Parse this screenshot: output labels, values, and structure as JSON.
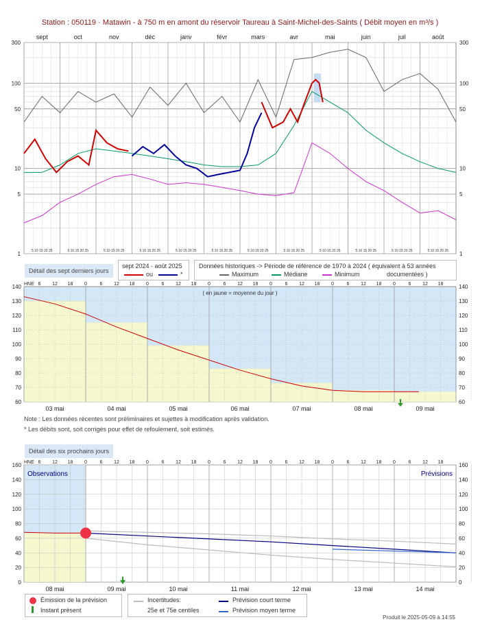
{
  "title": "Station : 050119     ·   Matawin - à 750 m en amont du réservoir Taureau à Saint-Michel-des-Saints   ( Débit moyen en m³/s )",
  "footer": "Produit le 2025-05-09 à 14:55",
  "colors": {
    "recent": "#cc0000",
    "recent_corrected": "#000099",
    "maximum": "#666666",
    "median": "#009966",
    "minimum": "#cc33cc",
    "panel_bg": "#dbe9f6",
    "daily_avg": "#f5f8cf",
    "forecast_short": "#000080",
    "forecast_medium": "#3366cc",
    "uncertainty": "#bbbbbb"
  },
  "annual": {
    "months": [
      "sept",
      "oct",
      "nov",
      "déc",
      "janv",
      "févr",
      "mars",
      "avr",
      "mai",
      "juin",
      "juil",
      "août"
    ],
    "day_ticks_label": "5  10 15 20 25",
    "yticks": [
      "1",
      "5",
      "10",
      "50",
      "100",
      "300"
    ],
    "yticks_right": [
      "1",
      "5",
      "10",
      "50",
      "100",
      "300"
    ],
    "tab_label": "Détail des sept derniers jours",
    "legend_recent_title": "sept 2024 - août 2025",
    "legend_recent_or": "ou",
    "legend_recent_star": "*",
    "legend_hist_title": "Données historiques -> Période de référence  de 1970 à 2024   ( équivalent à 53 années",
    "legend_max": "Maximum",
    "legend_median": "Médiane",
    "legend_min": "Minimum",
    "legend_documented": "documentées )"
  },
  "week": {
    "hne": "HNE",
    "hours": [
      "6",
      "12",
      "18",
      "0",
      "6",
      "12",
      "18",
      "0",
      "6",
      "12",
      "18",
      "0",
      "6",
      "12",
      "18",
      "0",
      "6",
      "12",
      "18",
      "0",
      "6",
      "12",
      "18",
      "0",
      "6",
      "12",
      "18"
    ],
    "yticks": [
      "60",
      "70",
      "80",
      "90",
      "100",
      "110",
      "120",
      "130",
      "140"
    ],
    "days": [
      "03 mai",
      "04 mai",
      "05 mai",
      "06 mai",
      "07 mai",
      "08 mai",
      "09 mai"
    ],
    "caption": "( en jaune = moyenne du jour )",
    "note1": "Note : Les données récentes sont préliminaires et sujettes à modification après validation.",
    "note2": "* Les débits sont, soit corrigés pour effet de refoulement, soit estimés."
  },
  "forecast": {
    "tab_label": "Détail des six prochains jours",
    "hne": "HNE",
    "hours": [
      "6",
      "12",
      "18",
      "0",
      "6",
      "12",
      "18",
      "0",
      "6",
      "12",
      "18",
      "0",
      "6",
      "12",
      "18",
      "0",
      "6",
      "12",
      "18",
      "0",
      "6",
      "12",
      "18",
      "0",
      "6",
      "12",
      "18"
    ],
    "yticks": [
      "0",
      "20",
      "40",
      "60",
      "80",
      "100",
      "120",
      "140",
      "160"
    ],
    "days": [
      "08 mai",
      "09 mai",
      "10 mai",
      "11 mai",
      "12 mai",
      "13 mai",
      "14 mai"
    ],
    "obs_label": "Observations",
    "prev_label": "Prévisions",
    "legend_emission": "Émission de la prévision",
    "legend_instant": "Instant présent",
    "legend_uncert": "Incertitudes:",
    "legend_centiles": "25e et 75e centiles",
    "legend_short": "Prévision court terme",
    "legend_medium": "Prévision moyen terme"
  },
  "chart_data": [
    {
      "type": "line",
      "title": "Station : 050119 · Matawin - à 750 m en amont du réservoir Taureau à Saint-Michel-des-Saints ( Débit moyen en m³/s )",
      "y_scale": "log",
      "ylim": [
        1,
        300
      ],
      "x_unit": "month (sept 2024 - août 2025)",
      "series": [
        {
          "name": "Maximum",
          "x": [
            0,
            0.5,
            1,
            1.5,
            2,
            2.5,
            3,
            3.5,
            4,
            4.5,
            5,
            5.5,
            6,
            6.5,
            7,
            7.5,
            8,
            8.5,
            9,
            9.5,
            10,
            10.5,
            11,
            11.5,
            12
          ],
          "values": [
            35,
            70,
            45,
            80,
            60,
            75,
            40,
            90,
            55,
            100,
            45,
            70,
            35,
            110,
            40,
            190,
            200,
            230,
            250,
            200,
            80,
            110,
            130,
            85,
            35
          ]
        },
        {
          "name": "Médiane",
          "x": [
            0,
            0.5,
            1,
            1.5,
            2,
            2.5,
            3,
            3.5,
            4,
            4.5,
            5,
            5.5,
            6,
            6.5,
            7,
            7.5,
            8,
            8.5,
            9,
            9.5,
            10,
            10.5,
            11,
            11.5,
            12
          ],
          "values": [
            9,
            9,
            11,
            15,
            17,
            16,
            15,
            14,
            13,
            12,
            11,
            10.5,
            10.5,
            11,
            15,
            32,
            80,
            60,
            45,
            28,
            20,
            15,
            12,
            10,
            9
          ]
        },
        {
          "name": "Minimum",
          "x": [
            0,
            0.5,
            1,
            1.5,
            2,
            2.5,
            3,
            3.5,
            4,
            4.5,
            5,
            5.5,
            6,
            6.5,
            7,
            7.5,
            8,
            8.5,
            9,
            9.5,
            10,
            10.5,
            11,
            11.5,
            12
          ],
          "values": [
            2.3,
            2.8,
            4,
            5,
            6.5,
            8,
            8.5,
            7.5,
            6.5,
            6.8,
            6.5,
            6,
            5.5,
            5,
            4.8,
            5.2,
            20,
            15,
            10,
            7,
            5.5,
            4,
            3,
            3.2,
            2.5
          ]
        },
        {
          "name": "sept 2024 - août 2025",
          "x": [
            0,
            0.3,
            0.6,
            0.9,
            1.2,
            1.5,
            1.8,
            2.0,
            2.3,
            2.6,
            2.9
          ],
          "values": [
            15,
            22,
            13,
            9,
            12,
            14,
            11,
            28,
            20,
            17,
            16
          ]
        },
        {
          "name": "*",
          "x": [
            3.0,
            3.3,
            3.6,
            3.9,
            4.2,
            4.5,
            4.8,
            5.1,
            5.4,
            5.7,
            6.0,
            6.2,
            6.4,
            6.6
          ],
          "values": [
            14,
            18,
            15,
            19,
            14,
            11,
            10,
            8,
            8.5,
            9,
            9.5,
            15,
            30,
            45
          ]
        },
        {
          "name": "ou",
          "x": [
            6.6,
            6.9,
            7.2,
            7.4,
            7.6,
            7.8,
            8.0,
            8.1,
            8.2,
            8.3
          ],
          "values": [
            60,
            30,
            35,
            50,
            35,
            60,
            100,
            110,
            100,
            60
          ]
        }
      ]
    },
    {
      "type": "line",
      "title": "Détail des sept derniers jours",
      "ylim": [
        60,
        140
      ],
      "categories": [
        "03 mai",
        "04 mai",
        "05 mai",
        "06 mai",
        "07 mai",
        "08 mai",
        "09 mai"
      ],
      "series": [
        {
          "name": "Débit",
          "x": [
            0,
            0.5,
            1,
            1.5,
            2,
            2.5,
            3,
            3.5,
            4,
            4.5,
            5,
            5.5,
            6,
            6.4
          ],
          "values": [
            133,
            128,
            121,
            112,
            104,
            96,
            89,
            82,
            76,
            71,
            68,
            67,
            67,
            67
          ]
        },
        {
          "name": "moyenne du jour",
          "values": [
            130,
            115,
            99,
            83,
            73,
            68,
            67
          ]
        }
      ]
    },
    {
      "type": "line",
      "title": "Détail des six prochains jours",
      "ylim": [
        0,
        160
      ],
      "categories": [
        "08 mai",
        "09 mai",
        "10 mai",
        "11 mai",
        "12 mai",
        "13 mai",
        "14 mai"
      ],
      "series": [
        {
          "name": "Observations",
          "x": [
            0,
            0.5,
            1
          ],
          "values": [
            68,
            67,
            67
          ]
        },
        {
          "name": "Prévision court terme",
          "x": [
            1,
            2,
            3,
            4,
            5,
            6,
            7
          ],
          "values": [
            67,
            63,
            59,
            55,
            50,
            45,
            40
          ]
        },
        {
          "name": "25e centile",
          "x": [
            1,
            2,
            3,
            4,
            5,
            6,
            7
          ],
          "values": [
            60,
            51,
            44,
            37,
            31,
            26,
            21
          ]
        },
        {
          "name": "75e centile",
          "x": [
            1,
            2,
            3,
            4,
            5,
            6,
            7
          ],
          "values": [
            70,
            68,
            66,
            63,
            59,
            56,
            52
          ]
        }
      ]
    }
  ]
}
